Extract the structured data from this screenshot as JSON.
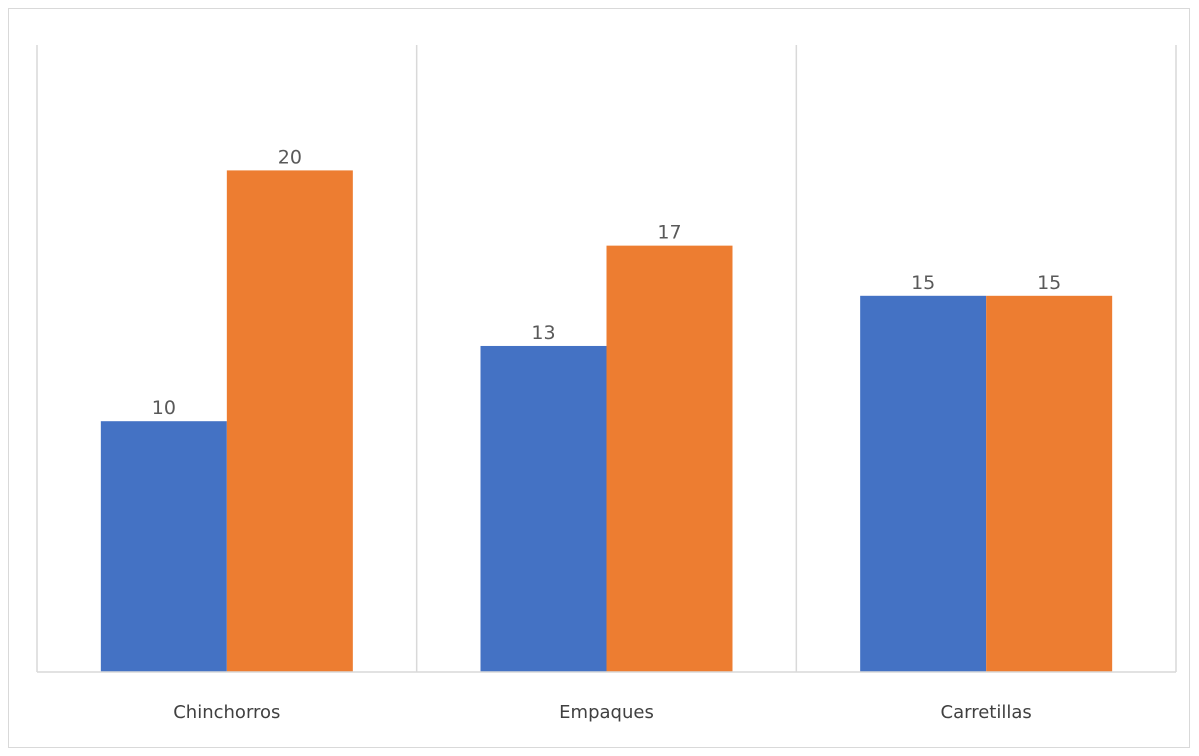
{
  "chart_data": {
    "type": "bar",
    "title": "",
    "xlabel": "",
    "ylabel": "",
    "categories": [
      "Chinchorros",
      "Empaques",
      "Carretillas"
    ],
    "series": [
      {
        "values": [
          10,
          13,
          15
        ],
        "color": "#4472C4"
      },
      {
        "values": [
          20,
          17,
          15
        ],
        "color": "#ED7D31"
      }
    ],
    "ylim": [
      0,
      25
    ],
    "data_labels": true,
    "gridlines": "vertical category separators",
    "legend": "none",
    "axis_line_color": "#d9d9d9",
    "label_color": "#595959"
  }
}
